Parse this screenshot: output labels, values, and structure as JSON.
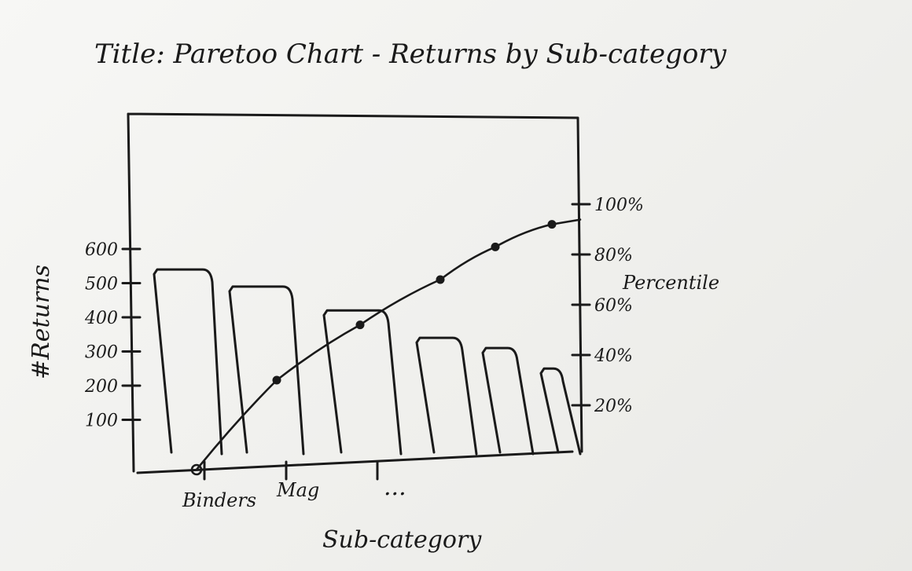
{
  "chart_data": {
    "type": "bar",
    "title": "Title: Paretoo Chart - Returns by Sub-category",
    "xlabel": "Sub-category",
    "ylabel": "#Returns",
    "y2label": "Percentile",
    "categories": [
      "Binders",
      "Mag",
      "",
      "",
      "",
      ""
    ],
    "ellipsis": "...",
    "values": [
      540,
      490,
      420,
      340,
      310,
      250
    ],
    "line": [
      0,
      30,
      52,
      70,
      83,
      92
    ],
    "ylim": [
      0,
      600
    ],
    "y_ticks": [
      100,
      200,
      300,
      400,
      500,
      600
    ],
    "y_tick_labels": [
      "100",
      "200",
      "300",
      "400",
      "500",
      "600"
    ],
    "y2_ticks": [
      20,
      40,
      60,
      80,
      100
    ],
    "y2_tick_labels": [
      "20%",
      "40%",
      "60%",
      "80%",
      "100%"
    ],
    "y2lim": [
      0,
      100
    ],
    "grid": false
  }
}
